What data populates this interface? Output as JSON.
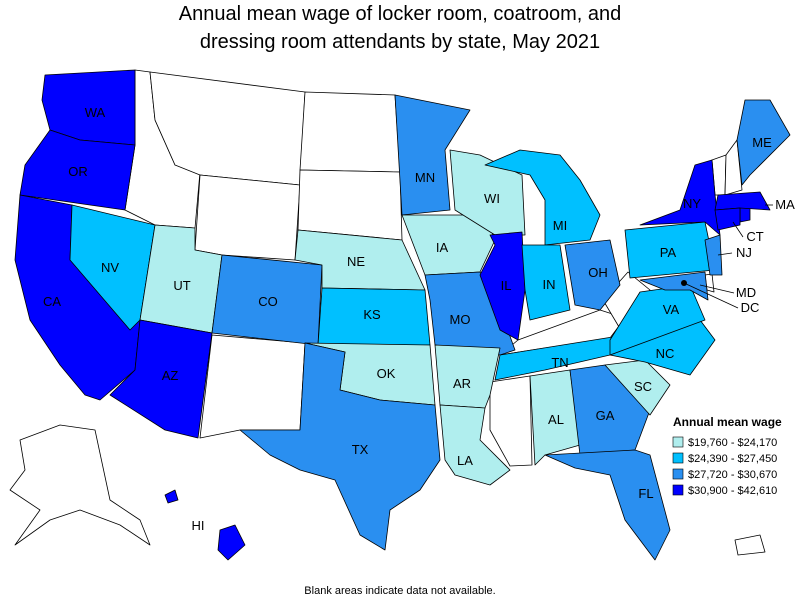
{
  "title": [
    "Annual mean wage of locker room, coatroom, and",
    "dressing room attendants by state, May 2021"
  ],
  "legend": {
    "title": "Annual mean wage",
    "items": [
      {
        "label": "$19,760 - $24,170",
        "color": "#b0eeee"
      },
      {
        "label": "$24,390 - $27,450",
        "color": "#00c0ff"
      },
      {
        "label": "$27,720 - $30,670",
        "color": "#2a8ff0"
      },
      {
        "label": "$30,900 - $42,610",
        "color": "#0000ff"
      }
    ]
  },
  "states": [
    {
      "abbr": "WA",
      "bin": 3
    },
    {
      "abbr": "OR",
      "bin": 3
    },
    {
      "abbr": "CA",
      "bin": 3
    },
    {
      "abbr": "NV",
      "bin": 1
    },
    {
      "abbr": "UT",
      "bin": 0
    },
    {
      "abbr": "AZ",
      "bin": 3
    },
    {
      "abbr": "CO",
      "bin": 2
    },
    {
      "abbr": "NE",
      "bin": 0
    },
    {
      "abbr": "KS",
      "bin": 1
    },
    {
      "abbr": "OK",
      "bin": 0
    },
    {
      "abbr": "TX",
      "bin": 2
    },
    {
      "abbr": "MN",
      "bin": 2
    },
    {
      "abbr": "IA",
      "bin": 0
    },
    {
      "abbr": "MO",
      "bin": 2
    },
    {
      "abbr": "AR",
      "bin": 0
    },
    {
      "abbr": "LA",
      "bin": 0
    },
    {
      "abbr": "WI",
      "bin": 0
    },
    {
      "abbr": "IL",
      "bin": 3
    },
    {
      "abbr": "MI",
      "bin": 1
    },
    {
      "abbr": "IN",
      "bin": 1
    },
    {
      "abbr": "OH",
      "bin": 2
    },
    {
      "abbr": "TN",
      "bin": 1
    },
    {
      "abbr": "AL",
      "bin": 0
    },
    {
      "abbr": "GA",
      "bin": 2
    },
    {
      "abbr": "SC",
      "bin": 0
    },
    {
      "abbr": "NC",
      "bin": 1
    },
    {
      "abbr": "VA",
      "bin": 1
    },
    {
      "abbr": "PA",
      "bin": 1
    },
    {
      "abbr": "NY",
      "bin": 3
    },
    {
      "abbr": "ME",
      "bin": 2
    },
    {
      "abbr": "MA",
      "bin": 3
    },
    {
      "abbr": "CT",
      "bin": 3
    },
    {
      "abbr": "NJ",
      "bin": 2
    },
    {
      "abbr": "MD",
      "bin": 2
    },
    {
      "abbr": "DC"
    },
    {
      "abbr": "FL",
      "bin": 2
    },
    {
      "abbr": "HI",
      "bin": 3
    }
  ],
  "note": "Blank areas indicate data not available."
}
